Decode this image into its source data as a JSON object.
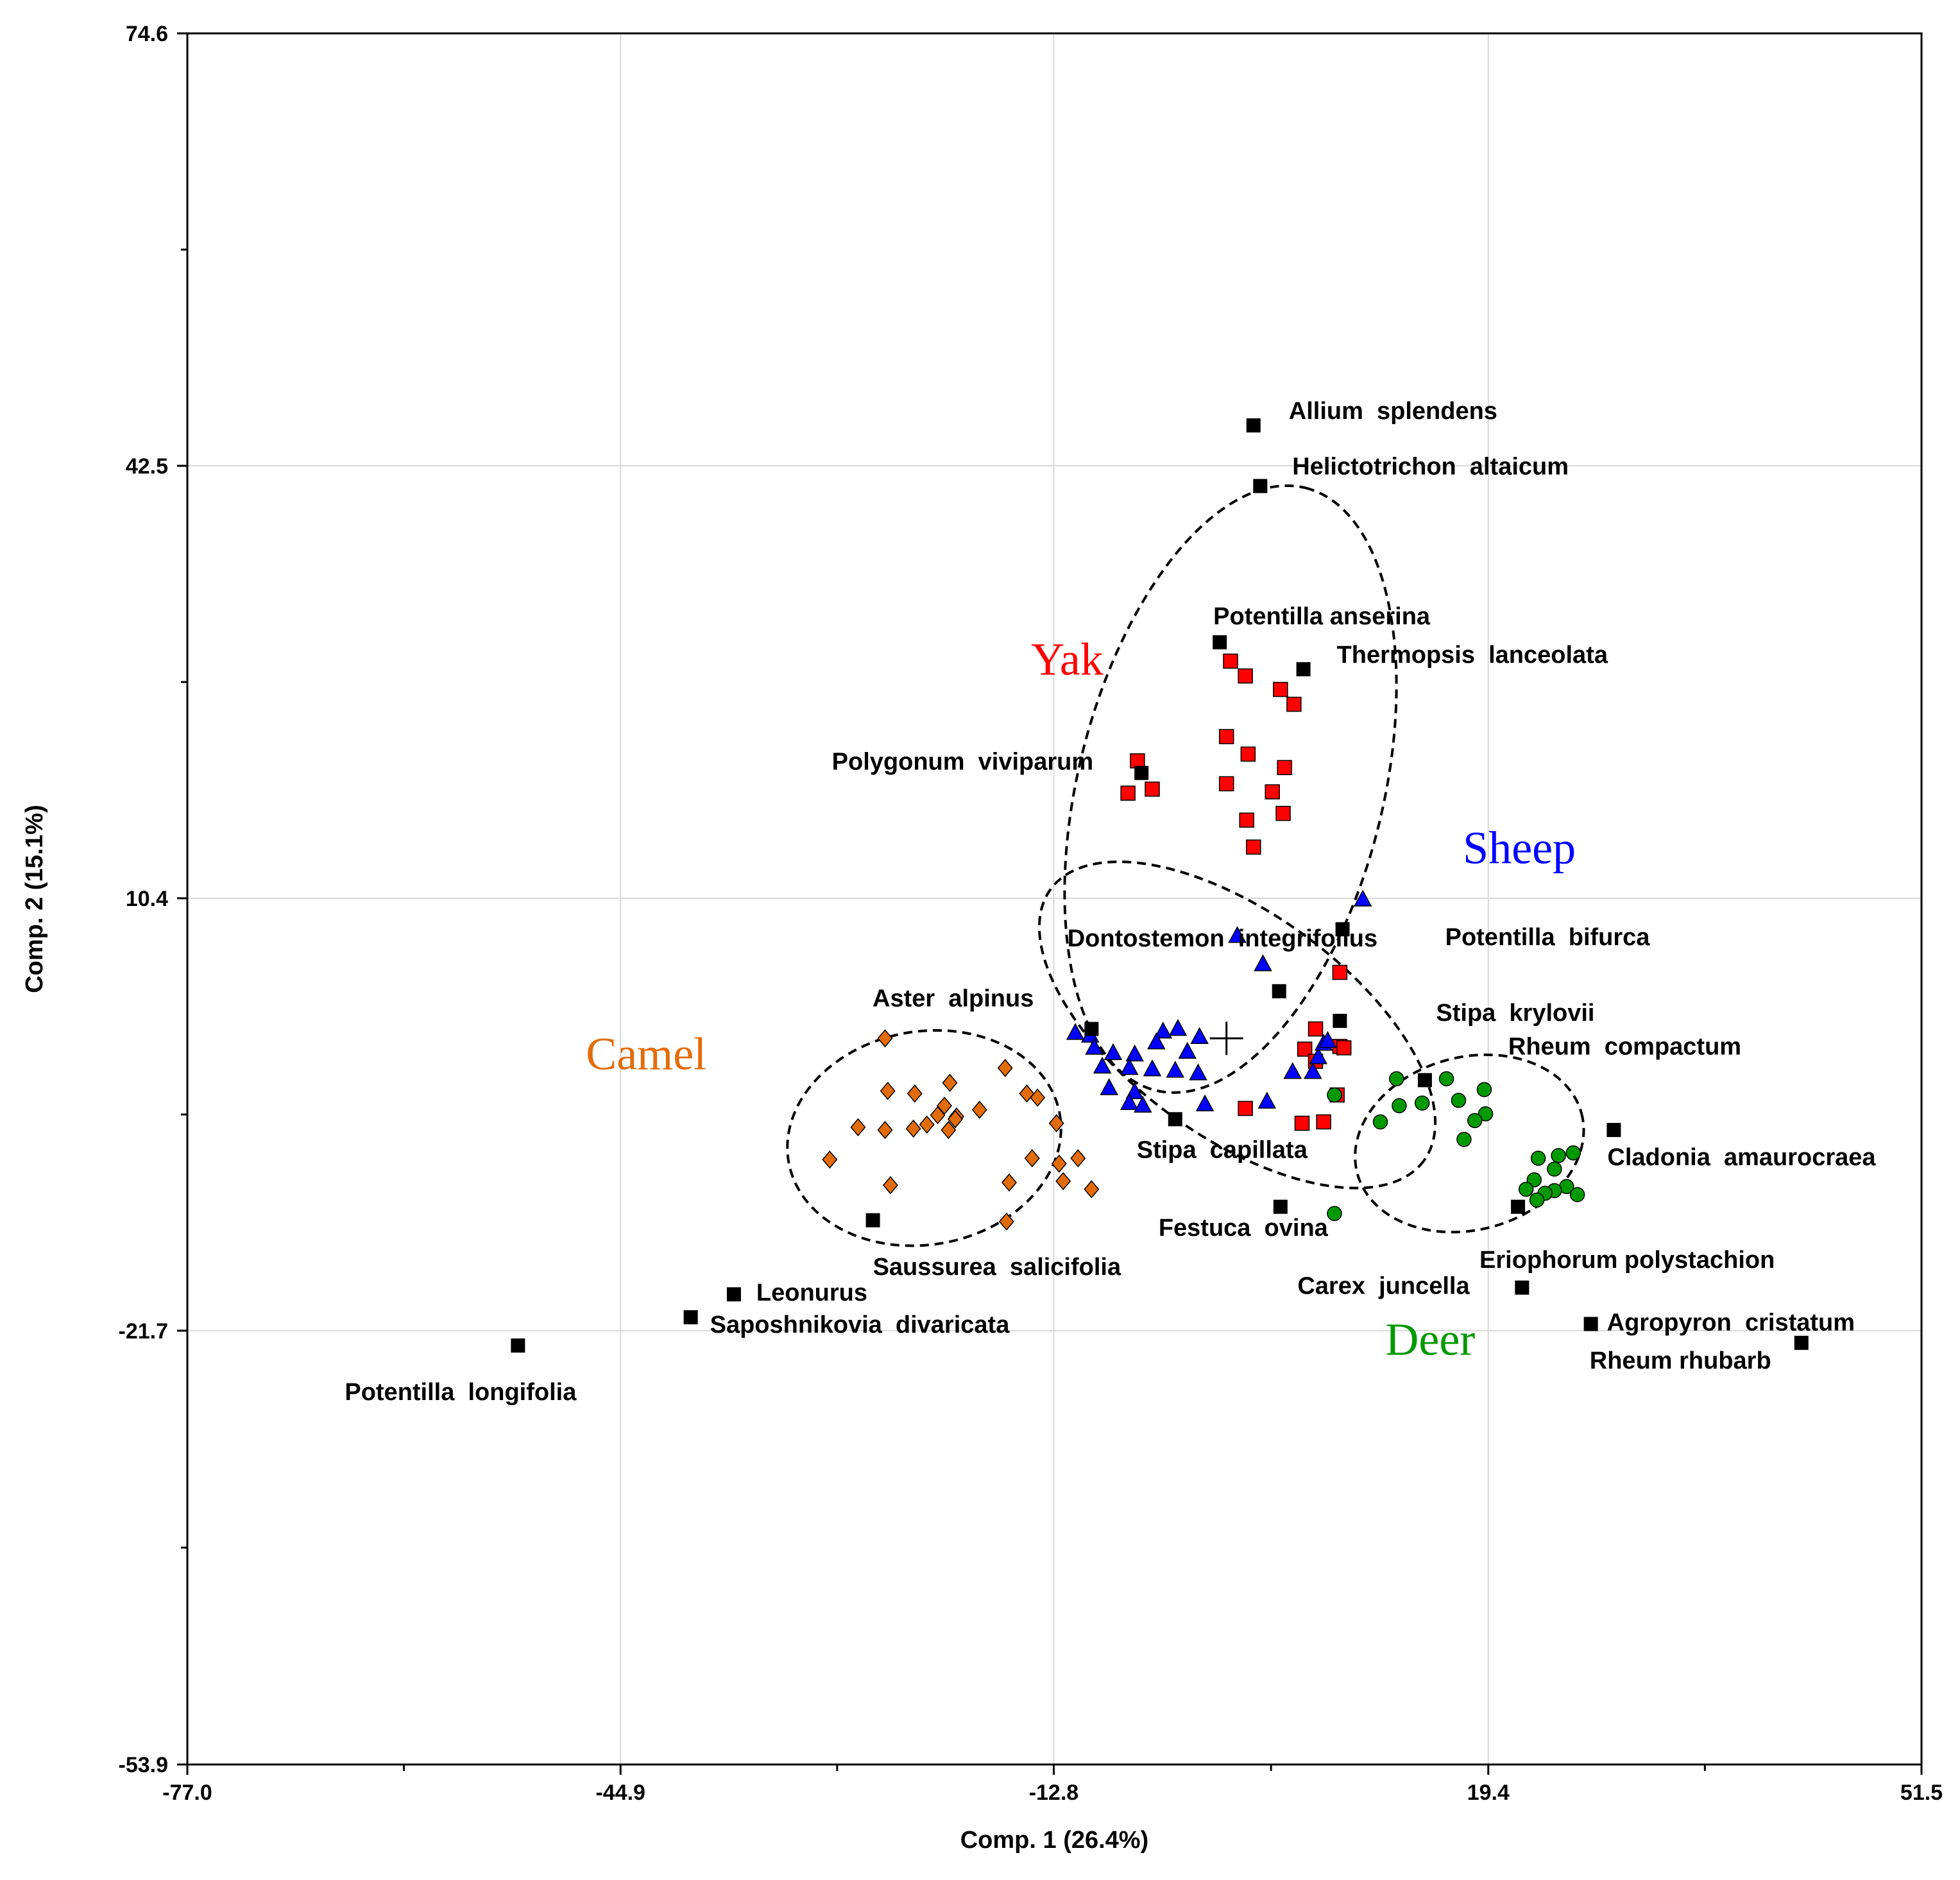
{
  "chart_data": {
    "type": "scatter",
    "xlabel": "Comp. 1 (26.4%)",
    "ylabel": "Comp. 2 (15.1%)",
    "xlim": [
      -77.0,
      51.5
    ],
    "ylim": [
      -53.9,
      74.6
    ],
    "x_ticks": [
      "-77.0",
      "-44.9",
      "-12.8",
      "19.4",
      "51.5"
    ],
    "y_ticks": [
      "74.6",
      "42.5",
      "10.4",
      "-21.7",
      "-53.9"
    ],
    "grid": true,
    "centroid": {
      "x": 0.0,
      "y": 0.0
    },
    "groups": [
      {
        "name": "Yak",
        "color": "#ff0000",
        "marker": "square",
        "label_pos": {
          "x": -11.8,
          "y": 27.0
        },
        "ellipse": {
          "cx": 0.3,
          "cy": 18.5,
          "rx": 23.0,
          "ry": 11.3,
          "angle": 76
        },
        "points": [
          [
            0.3,
            28.0
          ],
          [
            1.4,
            26.9
          ],
          [
            4.0,
            25.9
          ],
          [
            5.0,
            24.8
          ],
          [
            0.0,
            22.4
          ],
          [
            1.6,
            21.1
          ],
          [
            4.3,
            20.1
          ],
          [
            -6.6,
            20.6
          ],
          [
            -5.5,
            18.5
          ],
          [
            -7.3,
            18.2
          ],
          [
            0.0,
            18.9
          ],
          [
            3.4,
            18.3
          ],
          [
            4.2,
            16.7
          ],
          [
            1.5,
            16.2
          ],
          [
            2.0,
            14.2
          ],
          [
            8.4,
            4.9
          ],
          [
            6.6,
            0.7
          ],
          [
            8.4,
            -0.6
          ],
          [
            8.7,
            -0.7
          ],
          [
            5.8,
            -0.8
          ],
          [
            6.6,
            -1.7
          ],
          [
            8.2,
            -4.2
          ],
          [
            1.4,
            -5.2
          ],
          [
            5.6,
            -6.3
          ],
          [
            7.2,
            -6.2
          ]
        ]
      },
      {
        "name": "Sheep",
        "color": "#0000ff",
        "marker": "triangle",
        "label_pos": {
          "x": 21.7,
          "y": 13.0
        },
        "ellipse": {
          "cx": 0.8,
          "cy": 1.0,
          "rx": 17.1,
          "ry": 8.3,
          "angle": -36
        },
        "points": [
          [
            10.1,
            10.3
          ],
          [
            0.8,
            7.6
          ],
          [
            2.7,
            5.5
          ],
          [
            -10.1,
            0.2
          ],
          [
            -11.2,
            0.4
          ],
          [
            -9.8,
            -0.7
          ],
          [
            -8.4,
            -1.1
          ],
          [
            -6.8,
            -1.2
          ],
          [
            -4.7,
            0.5
          ],
          [
            -3.6,
            0.7
          ],
          [
            -2.0,
            0.1
          ],
          [
            -5.2,
            -0.3
          ],
          [
            -2.9,
            -1.0
          ],
          [
            -9.2,
            -2.1
          ],
          [
            -7.2,
            -2.2
          ],
          [
            -5.5,
            -2.3
          ],
          [
            -3.8,
            -2.4
          ],
          [
            -2.1,
            -2.6
          ],
          [
            -8.7,
            -3.7
          ],
          [
            -6.8,
            -4.0
          ],
          [
            -7.2,
            -4.8
          ],
          [
            -6.2,
            -5.0
          ],
          [
            -1.6,
            -4.9
          ],
          [
            3.0,
            -4.7
          ],
          [
            4.9,
            -2.5
          ],
          [
            6.4,
            -2.5
          ],
          [
            6.8,
            -1.4
          ],
          [
            7.2,
            -0.4
          ],
          [
            7.5,
            -0.2
          ]
        ]
      },
      {
        "name": "Camel",
        "color": "#e36c0a",
        "marker": "diamond",
        "label_pos": {
          "x": -43.0,
          "y": -2.3
        },
        "ellipse": {
          "cx": -22.4,
          "cy": -7.4,
          "rx": 10.2,
          "ry": 7.9,
          "angle": 10
        },
        "points": [
          [
            -25.3,
            0.0
          ],
          [
            -16.4,
            -2.2
          ],
          [
            -25.1,
            -3.9
          ],
          [
            -23.1,
            -4.1
          ],
          [
            -20.5,
            -3.3
          ],
          [
            -18.3,
            -5.3
          ],
          [
            -20.0,
            -5.8
          ],
          [
            -14.8,
            -4.1
          ],
          [
            -14.0,
            -4.4
          ],
          [
            -21.4,
            -5.7
          ],
          [
            -20.9,
            -5.0
          ],
          [
            -20.1,
            -6.0
          ],
          [
            -20.6,
            -6.8
          ],
          [
            -23.2,
            -6.7
          ],
          [
            -25.3,
            -6.8
          ],
          [
            -27.3,
            -6.6
          ],
          [
            -12.6,
            -6.3
          ],
          [
            -14.4,
            -8.9
          ],
          [
            -12.4,
            -9.3
          ],
          [
            -11.0,
            -8.9
          ],
          [
            -29.4,
            -9.0
          ],
          [
            -24.9,
            -10.9
          ],
          [
            -16.1,
            -10.7
          ],
          [
            -12.1,
            -10.6
          ],
          [
            -10.0,
            -11.2
          ],
          [
            -16.3,
            -13.6
          ],
          [
            -22.2,
            -6.4
          ]
        ]
      },
      {
        "name": "Deer",
        "color": "#009900",
        "marker": "circle",
        "label_pos": {
          "x": 15.1,
          "y": -23.5
        },
        "ellipse": {
          "cx": 18.0,
          "cy": -7.8,
          "rx": 8.6,
          "ry": 6.4,
          "angle": 15
        },
        "points": [
          [
            12.6,
            -3.0
          ],
          [
            16.3,
            -3.0
          ],
          [
            19.1,
            -3.8
          ],
          [
            17.2,
            -4.6
          ],
          [
            14.5,
            -4.8
          ],
          [
            12.8,
            -5.0
          ],
          [
            19.2,
            -5.6
          ],
          [
            18.4,
            -6.1
          ],
          [
            11.4,
            -6.2
          ],
          [
            17.6,
            -7.5
          ],
          [
            25.7,
            -8.5
          ],
          [
            24.6,
            -8.7
          ],
          [
            23.1,
            -8.9
          ],
          [
            24.3,
            -9.7
          ],
          [
            22.8,
            -10.5
          ],
          [
            25.2,
            -11.0
          ],
          [
            24.3,
            -11.3
          ],
          [
            23.6,
            -11.5
          ],
          [
            22.2,
            -11.2
          ],
          [
            26.0,
            -11.6
          ],
          [
            23.0,
            -12.0
          ],
          [
            8.0,
            -4.2
          ],
          [
            8.0,
            -13.0
          ]
        ]
      }
    ],
    "species": [
      {
        "name": "Allium  splendens",
        "x": 2.0,
        "y": 45.5
      },
      {
        "name": "Helictotrichon  altaicum",
        "x": 2.5,
        "y": 41.0
      },
      {
        "name": "Potentilla anserina",
        "x": -0.5,
        "y": 29.4
      },
      {
        "name": "Thermopsis  lanceolata",
        "x": 5.7,
        "y": 27.4
      },
      {
        "name": "Polygonum  viviparum",
        "x": -6.3,
        "y": 19.7
      },
      {
        "name": "Potentilla  bifurca",
        "x": 8.6,
        "y": 8.1
      },
      {
        "name": "Aster  alpinus",
        "x": -10.0,
        "y": 0.7
      },
      {
        "name": "Stipa  krylovii",
        "x": 8.4,
        "y": 1.3
      },
      {
        "name": "Dontostemon  integrifolius",
        "x": 3.9,
        "y": 3.5
      },
      {
        "name": "Rheum  compactum",
        "x": 14.7,
        "y": -3.1
      },
      {
        "name": "Cladonia  amaurocraea",
        "x": 28.7,
        "y": -6.8
      },
      {
        "name": "Stipa  capillata",
        "x": -3.8,
        "y": -6.0
      },
      {
        "name": "Festuca  ovina",
        "x": 4.0,
        "y": -12.5
      },
      {
        "name": "Eriophorum polystachion",
        "x": 21.6,
        "y": -12.5
      },
      {
        "name": "Saussurea  salicifolia",
        "x": -26.2,
        "y": -13.5
      },
      {
        "name": "Carex  juncella",
        "x": 21.9,
        "y": -18.5
      },
      {
        "name": "Leonurus",
        "x": -36.5,
        "y": -19.0
      },
      {
        "name": "Saposhnikovia  divaricata",
        "x": -39.7,
        "y": -20.7
      },
      {
        "name": "Agropyron  cristatum",
        "x": 27.0,
        "y": -21.2
      },
      {
        "name": "Rheum rhubarb",
        "x": 42.6,
        "y": -22.6
      },
      {
        "name": "Potentilla  longifolia",
        "x": -52.5,
        "y": -22.8
      }
    ]
  }
}
